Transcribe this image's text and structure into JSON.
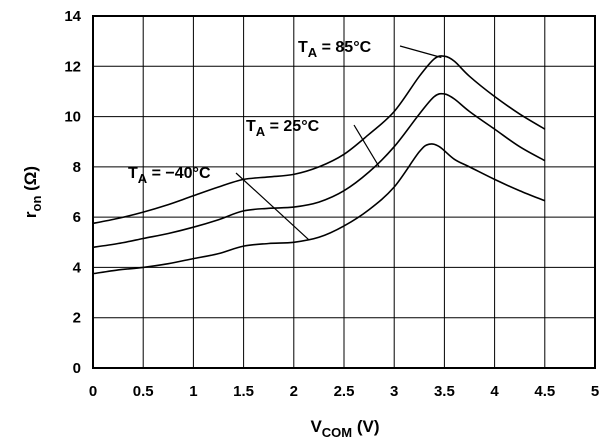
{
  "chart_data": {
    "type": "line",
    "title": "",
    "xlabel": {
      "main": "V",
      "sub": "COM",
      "rest": " (V)"
    },
    "ylabel": {
      "main": "r",
      "sub": "on",
      "rest": " (Ω)"
    },
    "xlim": [
      0,
      5
    ],
    "ylim": [
      0,
      14
    ],
    "x_ticks": [
      "0",
      "0.5",
      "1",
      "1.5",
      "2",
      "2.5",
      "3",
      "3.5",
      "4",
      "4.5",
      "5"
    ],
    "y_ticks": [
      "0",
      "2",
      "4",
      "6",
      "8",
      "10",
      "12",
      "14"
    ],
    "grid": true,
    "legend": "none",
    "series": [
      {
        "label": {
          "main": "T",
          "sub": "A",
          "rest": " = 85°C"
        },
        "points": [
          [
            0,
            5.75
          ],
          [
            0.25,
            5.95
          ],
          [
            0.5,
            6.2
          ],
          [
            0.75,
            6.5
          ],
          [
            1,
            6.85
          ],
          [
            1.25,
            7.2
          ],
          [
            1.5,
            7.5
          ],
          [
            1.75,
            7.6
          ],
          [
            2,
            7.7
          ],
          [
            2.25,
            8.0
          ],
          [
            2.5,
            8.5
          ],
          [
            2.75,
            9.3
          ],
          [
            3,
            10.2
          ],
          [
            3.25,
            11.6
          ],
          [
            3.4,
            12.3
          ],
          [
            3.5,
            12.4
          ],
          [
            3.6,
            12.2
          ],
          [
            3.75,
            11.6
          ],
          [
            4,
            10.8
          ],
          [
            4.25,
            10.1
          ],
          [
            4.5,
            9.5
          ]
        ]
      },
      {
        "label": {
          "main": "T",
          "sub": "A",
          "rest": " = 25°C"
        },
        "points": [
          [
            0,
            4.8
          ],
          [
            0.25,
            4.95
          ],
          [
            0.5,
            5.15
          ],
          [
            0.75,
            5.35
          ],
          [
            1,
            5.6
          ],
          [
            1.25,
            5.9
          ],
          [
            1.5,
            6.25
          ],
          [
            1.75,
            6.35
          ],
          [
            2,
            6.4
          ],
          [
            2.25,
            6.6
          ],
          [
            2.5,
            7.05
          ],
          [
            2.75,
            7.8
          ],
          [
            3,
            8.8
          ],
          [
            3.25,
            10.1
          ],
          [
            3.4,
            10.8
          ],
          [
            3.5,
            10.9
          ],
          [
            3.6,
            10.7
          ],
          [
            3.75,
            10.2
          ],
          [
            4,
            9.5
          ],
          [
            4.25,
            8.8
          ],
          [
            4.5,
            8.25
          ]
        ]
      },
      {
        "label": {
          "main": "T",
          "sub": "A",
          "rest": " = −40°C"
        },
        "points": [
          [
            0,
            3.75
          ],
          [
            0.25,
            3.9
          ],
          [
            0.5,
            4.0
          ],
          [
            0.75,
            4.15
          ],
          [
            1,
            4.35
          ],
          [
            1.25,
            4.55
          ],
          [
            1.5,
            4.85
          ],
          [
            1.75,
            4.95
          ],
          [
            2,
            5.0
          ],
          [
            2.25,
            5.2
          ],
          [
            2.5,
            5.65
          ],
          [
            2.75,
            6.3
          ],
          [
            3,
            7.2
          ],
          [
            3.25,
            8.6
          ],
          [
            3.35,
            8.9
          ],
          [
            3.45,
            8.8
          ],
          [
            3.6,
            8.3
          ],
          [
            3.75,
            8.0
          ],
          [
            4,
            7.5
          ],
          [
            4.25,
            7.05
          ],
          [
            4.5,
            6.65
          ]
        ]
      }
    ]
  }
}
